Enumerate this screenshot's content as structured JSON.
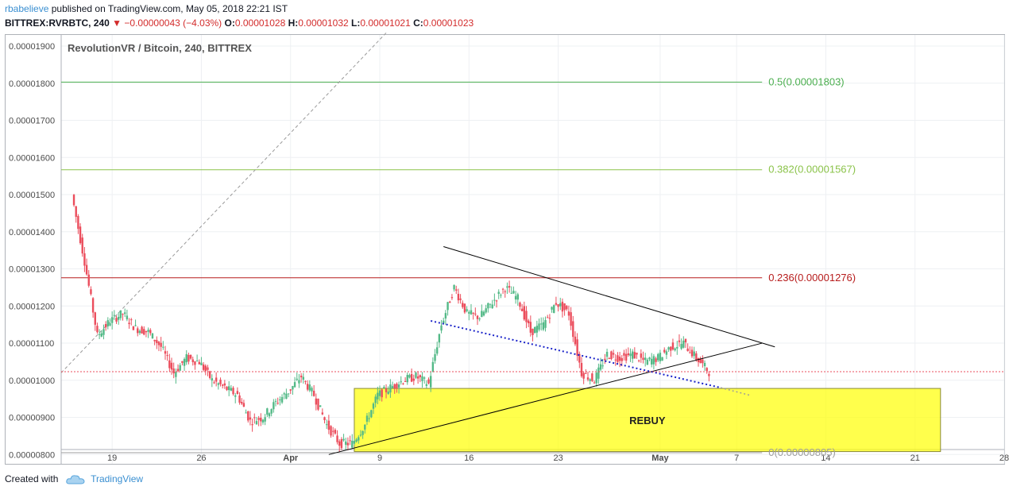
{
  "header": {
    "author": "rbabelieve",
    "published": "published on TradingView.com, May 05, 2018 22:21 IST",
    "symbol": "BITTREX:RVRBTC, 240",
    "change": "−0.00000043 (−4.03%)",
    "o_label": "O:",
    "o_value": "0.00001028",
    "h_label": "H:",
    "h_value": "0.00001032",
    "l_label": "L:",
    "l_value": "0.00001021",
    "c_label": "C:",
    "c_value": "0.00001023",
    "change_arrow": "triangle-down-icon"
  },
  "footer": {
    "created_with": "Created with",
    "brand": "TradingView",
    "logo_icon": "tradingview-cloud-icon"
  },
  "colors": {
    "up": "#53b987",
    "down": "#eb4d5c",
    "fib_05": "#4caf50",
    "fib_0382": "#8bc34a",
    "fib_0236": "#b71c1c",
    "fib_0": "#9e9e9e",
    "rebuy_zone": "#ffff00",
    "trend_dotted": "#1a23c9"
  },
  "chart_data": {
    "type": "candlestick",
    "title": "RevolutionVR / Bitcoin, 240, BITTREX",
    "y_axis": {
      "ticks": [
        "0.00001900",
        "0.00001800",
        "0.00001700",
        "0.00001600",
        "0.00001500",
        "0.00001400",
        "0.00001300",
        "0.00001200",
        "0.00001100",
        "0.00001000",
        "0.00000900",
        "0.00000800"
      ],
      "range": [
        7.75e-06,
        1.93e-05
      ]
    },
    "x_axis": {
      "ticks": [
        "19",
        "26",
        "Apr",
        "9",
        "16",
        "23",
        "May",
        "7",
        "14",
        "21",
        "28"
      ],
      "range": [
        "2018-03-15",
        "2018-05-28"
      ]
    },
    "fib_levels": [
      {
        "label": "0.5(0.00001803)",
        "value": 1.803e-05
      },
      {
        "label": "0.382(0.00001567)",
        "value": 1.567e-05
      },
      {
        "label": "0.236(0.00001276)",
        "value": 1.276e-05
      },
      {
        "label": "0(0.00000805)",
        "value": 8.05e-06
      }
    ],
    "last_price": 1.023e-05,
    "annotation": {
      "text": "REBUY",
      "date_range": [
        "2018-04-07",
        "2018-05-23"
      ],
      "price_range": [
        8.08e-06,
        9.78e-06
      ]
    },
    "daily_closes": [
      {
        "date": "2018-03-16",
        "price": 1.5e-05
      },
      {
        "date": "2018-03-17",
        "price": 1.32e-05
      },
      {
        "date": "2018-03-18",
        "price": 1.12e-05
      },
      {
        "date": "2018-03-19",
        "price": 1.16e-05
      },
      {
        "date": "2018-03-20",
        "price": 1.18e-05
      },
      {
        "date": "2018-03-21",
        "price": 1.14e-05
      },
      {
        "date": "2018-03-22",
        "price": 1.13e-05
      },
      {
        "date": "2018-03-23",
        "price": 1.09e-05
      },
      {
        "date": "2018-03-24",
        "price": 1.02e-05
      },
      {
        "date": "2018-03-25",
        "price": 1.06e-05
      },
      {
        "date": "2018-03-26",
        "price": 1.05e-05
      },
      {
        "date": "2018-03-27",
        "price": 1e-05
      },
      {
        "date": "2018-03-28",
        "price": 9.8e-06
      },
      {
        "date": "2018-03-29",
        "price": 9.6e-06
      },
      {
        "date": "2018-03-30",
        "price": 8.9e-06
      },
      {
        "date": "2018-03-31",
        "price": 9e-06
      },
      {
        "date": "2018-04-01",
        "price": 9.4e-06
      },
      {
        "date": "2018-04-02",
        "price": 9.7e-06
      },
      {
        "date": "2018-04-03",
        "price": 1.01e-05
      },
      {
        "date": "2018-04-04",
        "price": 9.6e-06
      },
      {
        "date": "2018-04-05",
        "price": 8.8e-06
      },
      {
        "date": "2018-04-06",
        "price": 8.3e-06
      },
      {
        "date": "2018-04-07",
        "price": 8.3e-06
      },
      {
        "date": "2018-04-08",
        "price": 8.8e-06
      },
      {
        "date": "2018-04-09",
        "price": 9.6e-06
      },
      {
        "date": "2018-04-10",
        "price": 9.8e-06
      },
      {
        "date": "2018-04-11",
        "price": 1e-05
      },
      {
        "date": "2018-04-12",
        "price": 1.01e-05
      },
      {
        "date": "2018-04-13",
        "price": 9.9e-06
      },
      {
        "date": "2018-04-14",
        "price": 1.15e-05
      },
      {
        "date": "2018-04-15",
        "price": 1.25e-05
      },
      {
        "date": "2018-04-16",
        "price": 1.18e-05
      },
      {
        "date": "2018-04-17",
        "price": 1.17e-05
      },
      {
        "date": "2018-04-18",
        "price": 1.21e-05
      },
      {
        "date": "2018-04-19",
        "price": 1.25e-05
      },
      {
        "date": "2018-04-20",
        "price": 1.22e-05
      },
      {
        "date": "2018-04-21",
        "price": 1.13e-05
      },
      {
        "date": "2018-04-22",
        "price": 1.15e-05
      },
      {
        "date": "2018-04-23",
        "price": 1.21e-05
      },
      {
        "date": "2018-04-24",
        "price": 1.18e-05
      },
      {
        "date": "2018-04-25",
        "price": 1.02e-05
      },
      {
        "date": "2018-04-26",
        "price": 1e-05
      },
      {
        "date": "2018-04-27",
        "price": 1.07e-05
      },
      {
        "date": "2018-04-28",
        "price": 1.06e-05
      },
      {
        "date": "2018-04-29",
        "price": 1.07e-05
      },
      {
        "date": "2018-04-30",
        "price": 1.05e-05
      },
      {
        "date": "2018-05-01",
        "price": 1.06e-05
      },
      {
        "date": "2018-05-02",
        "price": 1.09e-05
      },
      {
        "date": "2018-05-03",
        "price": 1.1e-05
      },
      {
        "date": "2018-05-04",
        "price": 1.06e-05
      },
      {
        "date": "2018-05-05",
        "price": 1.023e-05
      }
    ]
  }
}
